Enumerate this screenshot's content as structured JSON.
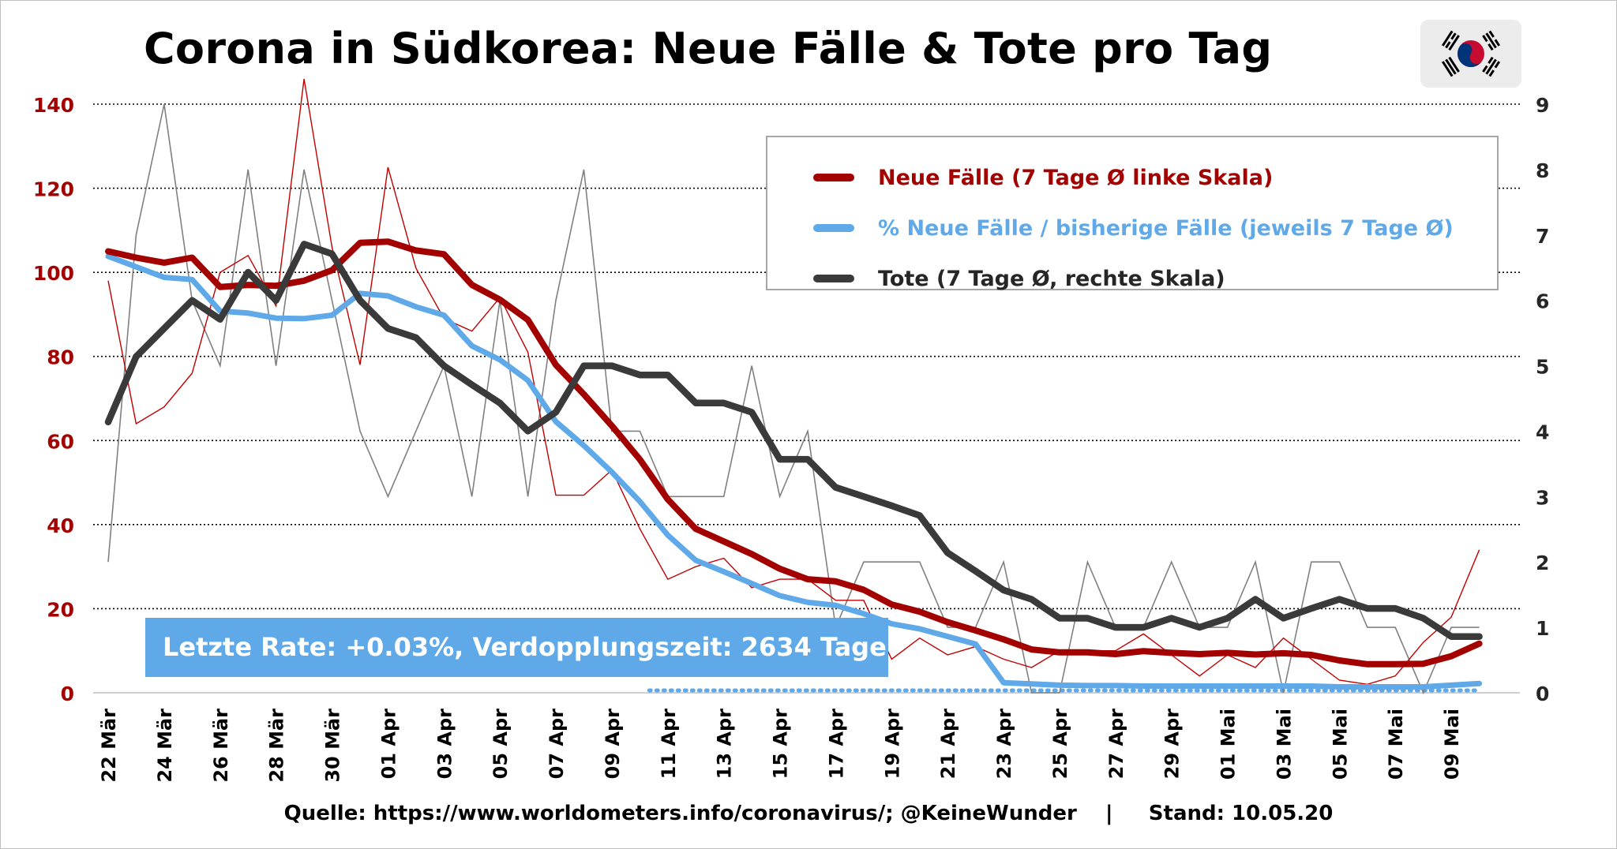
{
  "title": "Corona in Südkorea: Neue Fälle & Tote pro Tag",
  "source": "Quelle: https://www.worldometers.info/coronavirus/; @KeineWunder    |     Stand: 10.05.20",
  "rate_box": "Letzte Rate: +0.03%, Verdopplungszeit: 2634 Tage",
  "flag_icon": "south-korea-flag-icon",
  "colors": {
    "cases": "#a30000",
    "pct": "#5fa9e8",
    "deaths": "#3a3a3a",
    "deaths_daily": "#808080",
    "cases_daily": "#c00000"
  },
  "legend": [
    {
      "label": "Neue Fälle (7 Tage Ø linke Skala)",
      "color": "#a30000"
    },
    {
      "label": "% Neue Fälle / bisherige Fälle (jeweils 7 Tage Ø)",
      "color": "#5fa9e8"
    },
    {
      "label": "Tote (7 Tage Ø, rechte Skala)",
      "color": "#3a3a3a"
    }
  ],
  "chart_data": {
    "type": "line",
    "title": "Corona in Südkorea: Neue Fälle & Tote pro Tag",
    "x": [
      "22 Mär",
      "23 Mär",
      "24 Mär",
      "25 Mär",
      "26 Mär",
      "27 Mär",
      "28 Mär",
      "29 Mär",
      "30 Mär",
      "31 Mär",
      "01 Apr",
      "02 Apr",
      "03 Apr",
      "04 Apr",
      "05 Apr",
      "06 Apr",
      "07 Apr",
      "08 Apr",
      "09 Apr",
      "10 Apr",
      "11 Apr",
      "12 Apr",
      "13 Apr",
      "14 Apr",
      "15 Apr",
      "16 Apr",
      "17 Apr",
      "18 Apr",
      "19 Apr",
      "20 Apr",
      "21 Apr",
      "22 Apr",
      "23 Apr",
      "24 Apr",
      "25 Apr",
      "26 Apr",
      "27 Apr",
      "28 Apr",
      "29 Apr",
      "30 Apr",
      "01 Mai",
      "02 Mai",
      "03 Mai",
      "04 Mai",
      "05 Mai",
      "06 Mai",
      "07 Mai",
      "08 Mai",
      "09 Mai",
      "10 Mai"
    ],
    "x_tick_labels": [
      "22 Mär",
      "24 Mär",
      "26 Mär",
      "28 Mär",
      "30 Mär",
      "01 Apr",
      "03 Apr",
      "05 Apr",
      "07 Apr",
      "09 Apr",
      "11 Apr",
      "13 Apr",
      "15 Apr",
      "17 Apr",
      "19 Apr",
      "21 Apr",
      "23 Apr",
      "25 Apr",
      "27 Apr",
      "29 Apr",
      "01 Mai",
      "03 Mai",
      "05 Mai",
      "07 Mai",
      "09 Mai"
    ],
    "y_left": {
      "range": [
        0,
        140
      ],
      "ticks": [
        "0",
        "20",
        "40",
        "60",
        "80",
        "100",
        "120",
        "140"
      ]
    },
    "y_right": {
      "range": [
        0,
        9
      ],
      "ticks": [
        "0",
        "1",
        "2",
        "3",
        "4",
        "5",
        "6",
        "7",
        "8",
        "9"
      ]
    },
    "grid": true,
    "legend_position": "top-right",
    "series": [
      {
        "name": "Neue Fälle (7 Tage Ø linke Skala)",
        "axis": "left",
        "style": "thick",
        "values": [
          105,
          103.5,
          102.3,
          103.5,
          96.5,
          97,
          96.8,
          98,
          100.5,
          107,
          107.3,
          105.2,
          104.3,
          97,
          93.5,
          88.7,
          78,
          71,
          63.5,
          55.5,
          46,
          39,
          36,
          33,
          29.5,
          27,
          26.5,
          24.5,
          21,
          19.3,
          16.8,
          14.8,
          12.7,
          10.3,
          9.6,
          9.6,
          9.2,
          9.9,
          9.5,
          9.2,
          9.5,
          9.1,
          9.4,
          9,
          7.7,
          6.8,
          6.8,
          6.9,
          8.7,
          11.7
        ]
      },
      {
        "name": "% Neue Fälle / bisherige Fälle (jeweils 7 Tage Ø)",
        "axis": "left",
        "style": "thick",
        "values": [
          103.8,
          101.3,
          98.8,
          98.3,
          90.8,
          90.3,
          89.1,
          89,
          89.8,
          95,
          94.4,
          91.8,
          89.8,
          82.5,
          79.2,
          74.3,
          64.5,
          58.8,
          52.5,
          45.5,
          37.5,
          31.5,
          28.8,
          26,
          23.1,
          21.5,
          20.8,
          18.8,
          16.4,
          15.2,
          13.4,
          11.6,
          2.4,
          2.1,
          1.8,
          1.7,
          1.7,
          1.6,
          1.6,
          1.6,
          1.6,
          1.6,
          1.6,
          1.6,
          1.4,
          1.4,
          1.4,
          1.4,
          1.8,
          2.2
        ]
      },
      {
        "name": "Tote (7 Tage Ø, rechte Skala)",
        "axis": "right",
        "style": "thick",
        "values": [
          4.14,
          5.14,
          5.57,
          6,
          5.71,
          6.43,
          6,
          6.86,
          6.71,
          6,
          5.57,
          5.43,
          5,
          4.71,
          4.43,
          4,
          4.29,
          5,
          5,
          4.86,
          4.86,
          4.43,
          4.43,
          4.29,
          3.57,
          3.57,
          3.14,
          3,
          2.86,
          2.71,
          2.14,
          1.86,
          1.57,
          1.43,
          1.14,
          1.14,
          1,
          1,
          1.14,
          1,
          1.14,
          1.43,
          1.14,
          1.29,
          1.43,
          1.29,
          1.29,
          1.14,
          0.86,
          0.86
        ]
      },
      {
        "name": "",
        "axis": "left",
        "style": "thin",
        "description": "daily new cases",
        "values": [
          98,
          64,
          68,
          76,
          100,
          104,
          92,
          146,
          106,
          78,
          125,
          101,
          89,
          86,
          94,
          81,
          47,
          47,
          53,
          39,
          27,
          30,
          32,
          25,
          27,
          27,
          22,
          22,
          8,
          13,
          9,
          11,
          8,
          6,
          10,
          10,
          10,
          14,
          9,
          4,
          9,
          6,
          13,
          8,
          3,
          2,
          4,
          12,
          18,
          34
        ]
      },
      {
        "name": "",
        "axis": "right",
        "style": "thin",
        "description": "daily deaths",
        "values": [
          2,
          7,
          9,
          6,
          5,
          8,
          5,
          8,
          6,
          4,
          3,
          4,
          5,
          3,
          6,
          3,
          6,
          8,
          4,
          4,
          3,
          3,
          3,
          5,
          3,
          4,
          1,
          2,
          2,
          2,
          1,
          1,
          2,
          0,
          0,
          2,
          1,
          1,
          2,
          1,
          1,
          2,
          0,
          2,
          2,
          1,
          1,
          0,
          1,
          1
        ]
      }
    ]
  }
}
